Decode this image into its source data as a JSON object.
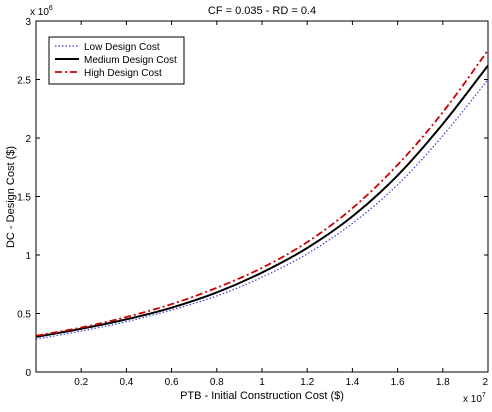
{
  "chart_data": {
    "type": "line",
    "title": "CF = 0.035 - RD = 0.4",
    "xlabel": "PTB - Initial Construction Cost ($)",
    "ylabel": "DC - Design Cost ($)",
    "x_exponent_base": "x 10",
    "x_exponent_power": "7",
    "y_exponent_base": "x 10",
    "y_exponent_power": "6",
    "xlim": [
      0.0,
      2.0
    ],
    "ylim": [
      0,
      3
    ],
    "x_ticks": [
      0.2,
      0.4,
      0.6,
      0.8,
      1,
      1.2,
      1.4,
      1.6,
      1.8,
      2
    ],
    "y_ticks": [
      0,
      0.5,
      1,
      1.5,
      2,
      2.5,
      3
    ],
    "grid": false,
    "legend_position": "top-left",
    "series": [
      {
        "name": "Low Design Cost",
        "color": "#3b3bd6",
        "style": "dotted",
        "x": [
          0.0,
          0.2,
          0.4,
          0.6,
          0.8,
          1.0,
          1.2,
          1.4,
          1.6,
          1.8,
          2.0
        ],
        "y": [
          0.28,
          0.35,
          0.43,
          0.53,
          0.65,
          0.81,
          1.01,
          1.27,
          1.6,
          2.02,
          2.5
        ]
      },
      {
        "name": "Medium Design Cost",
        "color": "#000000",
        "style": "solid",
        "x": [
          0.0,
          0.2,
          0.4,
          0.6,
          0.8,
          1.0,
          1.2,
          1.4,
          1.6,
          1.8,
          2.0
        ],
        "y": [
          0.3,
          0.37,
          0.45,
          0.55,
          0.68,
          0.85,
          1.06,
          1.33,
          1.68,
          2.12,
          2.62
        ]
      },
      {
        "name": "High Design Cost",
        "color": "#cc0000",
        "style": "dashdot",
        "x": [
          0.0,
          0.2,
          0.4,
          0.6,
          0.8,
          1.0,
          1.2,
          1.4,
          1.6,
          1.8,
          2.0
        ],
        "y": [
          0.31,
          0.38,
          0.47,
          0.58,
          0.72,
          0.89,
          1.11,
          1.4,
          1.77,
          2.22,
          2.75
        ]
      }
    ]
  }
}
